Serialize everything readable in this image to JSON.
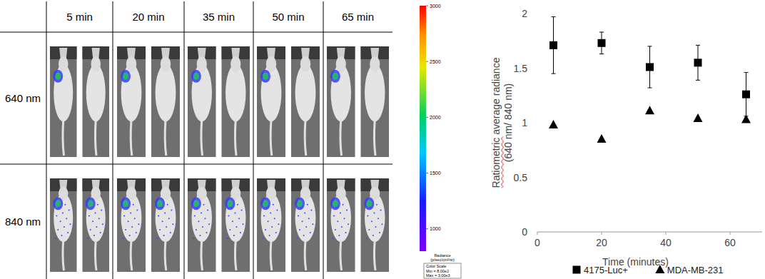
{
  "image_grid": {
    "columns": [
      "5 min",
      "20 min",
      "35 min",
      "50 min",
      "65 min"
    ],
    "rows": [
      "640 nm",
      "840 nm"
    ],
    "color_bar": {
      "lim": [
        800,
        3000
      ],
      "ticks": [
        1000,
        1500,
        2000,
        2500,
        3000
      ],
      "label": "Radiance",
      "unit": "(p/sec/cm²/sr)",
      "scale_title": "Color Scale",
      "min_label": "Min = 8.00e2",
      "max_label": "Max = 3.00e3"
    }
  },
  "chart_data": {
    "type": "scatter",
    "x_label": "Time (minutes)",
    "y_label": "Ratiometric average radiance (640 nm/ 840 nm)",
    "x": [
      5,
      20,
      35,
      50,
      65
    ],
    "xlim": [
      0,
      70
    ],
    "xticks": [
      0,
      20,
      40,
      60
    ],
    "ylim": [
      0,
      2
    ],
    "yticks": [
      0,
      0.5,
      1,
      1.5,
      2
    ],
    "grid": false,
    "legend": "bottom",
    "series": [
      {
        "name": "4175-Luc+",
        "color": "#000000",
        "marker": "square",
        "values": [
          1.71,
          1.73,
          1.51,
          1.55,
          1.26
        ],
        "errors": [
          0.26,
          0.1,
          0.19,
          0.16,
          0.2
        ]
      },
      {
        "name": "MDA-MB-231",
        "color": "#000000",
        "marker": "triangle",
        "values": [
          0.98,
          0.85,
          1.11,
          1.04,
          1.03
        ]
      }
    ]
  }
}
